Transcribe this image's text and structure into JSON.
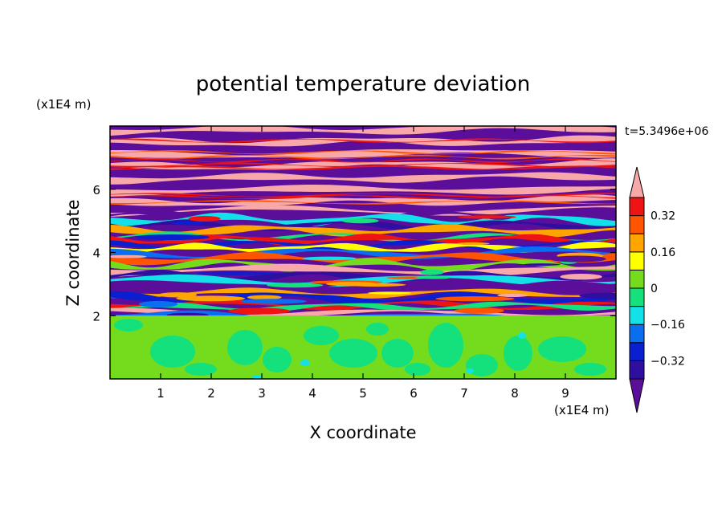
{
  "chart_data": {
    "type": "heatmap",
    "title": "potential temperature deviation",
    "xlabel": "X coordinate",
    "ylabel": "Z coordinate",
    "x_unit": "(x1E4 m)",
    "y_unit": "(x1E4 m)",
    "time_label": "t=5.3496e+06",
    "xlim": [
      0,
      10
    ],
    "ylim": [
      0,
      8
    ],
    "x_ticks": [
      1,
      2,
      3,
      4,
      5,
      6,
      7,
      8,
      9
    ],
    "y_ticks": [
      2,
      4,
      6
    ],
    "x_tick_labels": [
      "1",
      "2",
      "3",
      "4",
      "5",
      "6",
      "7",
      "8",
      "9"
    ],
    "y_tick_labels": [
      "2",
      "4",
      "6"
    ],
    "colorbar": {
      "levels": [
        -0.4,
        -0.32,
        -0.24,
        -0.16,
        -0.08,
        0,
        0.08,
        0.16,
        0.24,
        0.32,
        0.4
      ],
      "colors": [
        "#5b0e9a",
        "#2e0fa0",
        "#0a1fd0",
        "#0a6ef0",
        "#14e0e8",
        "#14e07c",
        "#74dc1c",
        "#ffff00",
        "#ffa500",
        "#ff5500",
        "#ee1414",
        "#f8a8a8"
      ],
      "tick_values": [
        0.32,
        0.16,
        0,
        -0.16,
        -0.32
      ],
      "tick_labels": [
        "0.32",
        "0.16",
        "0",
        "−0.16",
        "−0.32"
      ],
      "extend": "both"
    },
    "regions": [
      {
        "z_range": [
          0,
          2
        ],
        "description_values": "mostly near 0 (values roughly -0.08 to 0.08)",
        "dominant_color": "#74dc1c",
        "secondary_color": "#14e07c"
      },
      {
        "z_range": [
          2,
          5.3
        ],
        "description_values": "mixed full range -0.4 to 0.4"
      },
      {
        "z_range": [
          5.3,
          8
        ],
        "description_values": "alternating bands near -0.4 and 0.4",
        "band_colors": [
          "#5b0e9a",
          "#f8a8a8"
        ]
      }
    ]
  }
}
